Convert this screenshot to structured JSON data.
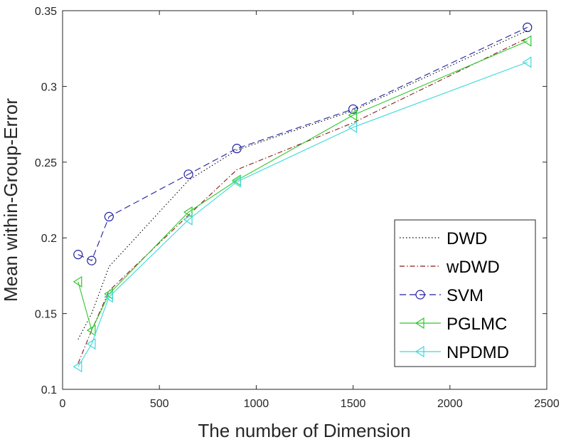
{
  "chart_data": {
    "type": "line",
    "xlabel": "The number of Dimension",
    "ylabel": "Mean within-Group-Error",
    "xlim": [
      0,
      2500
    ],
    "ylim": [
      0.1,
      0.35
    ],
    "xticks": [
      0,
      500,
      1000,
      1500,
      2000,
      2500
    ],
    "yticks": [
      0.1,
      0.15,
      0.2,
      0.25,
      0.3,
      0.35
    ],
    "xtick_labels": [
      "0",
      "500",
      "1000",
      "1500",
      "2000",
      "2500"
    ],
    "ytick_labels": [
      "0.1",
      "0.15",
      "0.2",
      "0.25",
      "0.3",
      "0.35"
    ],
    "grid": false,
    "legend_position": "bottom-right",
    "x": [
      80,
      150,
      240,
      650,
      900,
      1500,
      2400
    ],
    "series": [
      {
        "name": "DWD",
        "color": "#000000",
        "dash": "dotted",
        "marker": "none",
        "values": [
          0.133,
          0.15,
          0.181,
          0.238,
          0.258,
          0.284,
          0.337
        ]
      },
      {
        "name": "wDWD",
        "color": "#8b1a1a",
        "dash": "dashdot",
        "marker": "none",
        "values": [
          0.117,
          0.139,
          0.165,
          0.215,
          0.245,
          0.276,
          0.332
        ]
      },
      {
        "name": "SVM",
        "color": "#1f1fa0",
        "dash": "dashed",
        "marker": "circle",
        "values": [
          0.189,
          0.185,
          0.214,
          0.242,
          0.259,
          0.285,
          0.339
        ]
      },
      {
        "name": "PGLMC",
        "color": "#2ec82e",
        "dash": "solid",
        "marker": "triangle-left",
        "values": [
          0.171,
          0.139,
          0.163,
          0.217,
          0.238,
          0.281,
          0.33
        ]
      },
      {
        "name": "NPDMD",
        "color": "#3fd8d8",
        "dash": "solid",
        "marker": "triangle-left",
        "values": [
          0.115,
          0.13,
          0.161,
          0.212,
          0.237,
          0.273,
          0.316
        ]
      }
    ]
  }
}
